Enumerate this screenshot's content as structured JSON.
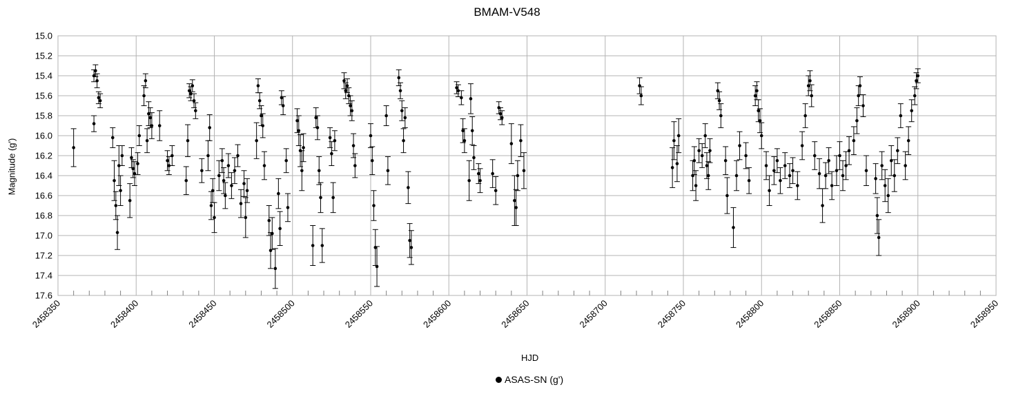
{
  "chart_data": {
    "type": "scatter",
    "title": "BMAM-V548",
    "xlabel": "HJD",
    "ylabel": "Magnitude (g')",
    "xlim": [
      2458350,
      2458950
    ],
    "ylim": [
      15.0,
      17.6
    ],
    "y_inverted": true,
    "grid": true,
    "error_bars": true,
    "legend": "bottom-center",
    "x_ticks": [
      "2458350",
      "2458400",
      "2458450",
      "2458500",
      "2458550",
      "2458600",
      "2458650",
      "2458700",
      "2458750",
      "2458800",
      "2458850",
      "2458900",
      "2458950"
    ],
    "y_ticks": [
      "15.0",
      "15.2",
      "15.4",
      "15.6",
      "15.8",
      "16.0",
      "16.2",
      "16.4",
      "16.6",
      "16.8",
      "17.0",
      "17.2",
      "17.4",
      "17.6"
    ],
    "series": [
      {
        "name": "ASAS-SN (g')",
        "color": "#000000",
        "points": [
          [
            2458360,
            16.12,
            0.19
          ],
          [
            2458373,
            15.4,
            0.06
          ],
          [
            2458373,
            15.88,
            0.08
          ],
          [
            2458374,
            15.35,
            0.06
          ],
          [
            2458375,
            15.45,
            0.07
          ],
          [
            2458376,
            15.62,
            0.06
          ],
          [
            2458377,
            15.65,
            0.07
          ],
          [
            2458385,
            16.02,
            0.1
          ],
          [
            2458386,
            16.45,
            0.2
          ],
          [
            2458387,
            16.7,
            0.14
          ],
          [
            2458388,
            16.97,
            0.17
          ],
          [
            2458389,
            16.3,
            0.2
          ],
          [
            2458390,
            16.55,
            0.15
          ],
          [
            2458391,
            16.2,
            0.1
          ],
          [
            2458396,
            16.65,
            0.17
          ],
          [
            2458397,
            16.22,
            0.1
          ],
          [
            2458398,
            16.33,
            0.09
          ],
          [
            2458399,
            16.38,
            0.12
          ],
          [
            2458401,
            16.28,
            0.11
          ],
          [
            2458402,
            16.0,
            0.1
          ],
          [
            2458405,
            15.6,
            0.1
          ],
          [
            2458406,
            15.45,
            0.07
          ],
          [
            2458407,
            16.05,
            0.12
          ],
          [
            2458408,
            15.78,
            0.12
          ],
          [
            2458409,
            15.82,
            0.1
          ],
          [
            2458410,
            15.9,
            0.13
          ],
          [
            2458415,
            15.9,
            0.15
          ],
          [
            2458420,
            16.25,
            0.1
          ],
          [
            2458421,
            16.3,
            0.09
          ],
          [
            2458423,
            16.2,
            0.1
          ],
          [
            2458432,
            16.45,
            0.14
          ],
          [
            2458433,
            16.05,
            0.16
          ],
          [
            2458434,
            15.55,
            0.07
          ],
          [
            2458435,
            15.58,
            0.07
          ],
          [
            2458436,
            15.5,
            0.06
          ],
          [
            2458437,
            15.65,
            0.07
          ],
          [
            2458438,
            15.75,
            0.08
          ],
          [
            2458442,
            16.35,
            0.12
          ],
          [
            2458446,
            16.2,
            0.15
          ],
          [
            2458447,
            15.92,
            0.13
          ],
          [
            2458448,
            16.7,
            0.14
          ],
          [
            2458449,
            16.55,
            0.12
          ],
          [
            2458450,
            16.82,
            0.15
          ],
          [
            2458453,
            16.4,
            0.15
          ],
          [
            2458455,
            16.25,
            0.12
          ],
          [
            2458456,
            16.45,
            0.13
          ],
          [
            2458457,
            16.6,
            0.13
          ],
          [
            2458459,
            16.3,
            0.12
          ],
          [
            2458461,
            16.5,
            0.13
          ],
          [
            2458463,
            16.35,
            0.13
          ],
          [
            2458465,
            16.2,
            0.11
          ],
          [
            2458467,
            16.68,
            0.14
          ],
          [
            2458469,
            16.48,
            0.13
          ],
          [
            2458470,
            16.82,
            0.2
          ],
          [
            2458471,
            16.55,
            0.12
          ],
          [
            2458477,
            16.05,
            0.18
          ],
          [
            2458478,
            15.5,
            0.07
          ],
          [
            2458479,
            15.65,
            0.08
          ],
          [
            2458480,
            15.8,
            0.1
          ],
          [
            2458481,
            15.9,
            0.12
          ],
          [
            2458482,
            16.3,
            0.14
          ],
          [
            2458485,
            16.85,
            0.15
          ],
          [
            2458486,
            17.15,
            0.18
          ],
          [
            2458487,
            16.98,
            0.16
          ],
          [
            2458489,
            17.33,
            0.2
          ],
          [
            2458491,
            16.58,
            0.15
          ],
          [
            2458492,
            16.93,
            0.17
          ],
          [
            2458493,
            15.62,
            0.07
          ],
          [
            2458494,
            15.7,
            0.09
          ],
          [
            2458496,
            16.25,
            0.12
          ],
          [
            2458497,
            16.72,
            0.14
          ],
          [
            2458503,
            15.85,
            0.12
          ],
          [
            2458504,
            15.95,
            0.15
          ],
          [
            2458505,
            16.15,
            0.16
          ],
          [
            2458506,
            16.35,
            0.2
          ],
          [
            2458507,
            16.12,
            0.14
          ],
          [
            2458513,
            17.1,
            0.2
          ],
          [
            2458515,
            15.82,
            0.1
          ],
          [
            2458516,
            15.92,
            0.12
          ],
          [
            2458517,
            16.35,
            0.14
          ],
          [
            2458518,
            16.62,
            0.15
          ],
          [
            2458519,
            17.1,
            0.17
          ],
          [
            2458524,
            16.02,
            0.1
          ],
          [
            2458525,
            16.18,
            0.12
          ],
          [
            2458526,
            16.62,
            0.15
          ],
          [
            2458527,
            16.05,
            0.1
          ],
          [
            2458533,
            15.45,
            0.08
          ],
          [
            2458534,
            15.55,
            0.08
          ],
          [
            2458535,
            15.5,
            0.07
          ],
          [
            2458536,
            15.6,
            0.08
          ],
          [
            2458537,
            15.7,
            0.1
          ],
          [
            2458538,
            15.75,
            0.1
          ],
          [
            2458539,
            16.1,
            0.12
          ],
          [
            2458540,
            16.3,
            0.12
          ],
          [
            2458550,
            16.0,
            0.12
          ],
          [
            2458551,
            16.25,
            0.14
          ],
          [
            2458552,
            16.7,
            0.15
          ],
          [
            2458553,
            17.12,
            0.18
          ],
          [
            2458554,
            17.31,
            0.2
          ],
          [
            2458560,
            15.8,
            0.1
          ],
          [
            2458561,
            16.35,
            0.14
          ],
          [
            2458568,
            15.42,
            0.08
          ],
          [
            2458569,
            15.55,
            0.08
          ],
          [
            2458570,
            15.75,
            0.1
          ],
          [
            2458571,
            16.05,
            0.12
          ],
          [
            2458572,
            15.82,
            0.1
          ],
          [
            2458574,
            16.52,
            0.16
          ],
          [
            2458575,
            17.05,
            0.17
          ],
          [
            2458576,
            17.12,
            0.17
          ],
          [
            2458605,
            15.52,
            0.06
          ],
          [
            2458606,
            15.55,
            0.06
          ],
          [
            2458608,
            15.62,
            0.07
          ],
          [
            2458609,
            15.95,
            0.12
          ],
          [
            2458610,
            16.05,
            0.12
          ],
          [
            2458613,
            16.45,
            0.2
          ],
          [
            2458614,
            15.63,
            0.15
          ],
          [
            2458615,
            15.95,
            0.14
          ],
          [
            2458616,
            16.22,
            0.12
          ],
          [
            2458619,
            16.38,
            0.1
          ],
          [
            2458620,
            16.45,
            0.12
          ],
          [
            2458628,
            16.38,
            0.14
          ],
          [
            2458630,
            16.55,
            0.14
          ],
          [
            2458632,
            15.72,
            0.06
          ],
          [
            2458633,
            15.78,
            0.06
          ],
          [
            2458634,
            15.82,
            0.07
          ],
          [
            2458640,
            16.08,
            0.2
          ],
          [
            2458642,
            16.65,
            0.25
          ],
          [
            2458643,
            16.72,
            0.18
          ],
          [
            2458644,
            16.4,
            0.15
          ],
          [
            2458646,
            16.05,
            0.16
          ],
          [
            2458648,
            16.35,
            0.18
          ],
          [
            2458722,
            15.5,
            0.08
          ],
          [
            2458723,
            15.6,
            0.09
          ],
          [
            2458743,
            16.32,
            0.2
          ],
          [
            2458744,
            16.05,
            0.19
          ],
          [
            2458746,
            16.28,
            0.18
          ],
          [
            2458747,
            16.0,
            0.17
          ],
          [
            2458756,
            16.4,
            0.15
          ],
          [
            2458757,
            16.25,
            0.14
          ],
          [
            2458758,
            16.5,
            0.15
          ],
          [
            2458760,
            16.15,
            0.12
          ],
          [
            2458762,
            16.2,
            0.12
          ],
          [
            2458764,
            16.0,
            0.12
          ],
          [
            2458765,
            16.3,
            0.13
          ],
          [
            2458766,
            16.4,
            0.14
          ],
          [
            2458767,
            16.15,
            0.12
          ],
          [
            2458772,
            15.55,
            0.08
          ],
          [
            2458773,
            15.65,
            0.09
          ],
          [
            2458774,
            15.8,
            0.12
          ],
          [
            2458777,
            16.25,
            0.14
          ],
          [
            2458778,
            16.6,
            0.18
          ],
          [
            2458782,
            16.92,
            0.2
          ],
          [
            2458784,
            16.4,
            0.15
          ],
          [
            2458786,
            16.1,
            0.14
          ],
          [
            2458790,
            16.2,
            0.13
          ],
          [
            2458792,
            16.45,
            0.13
          ],
          [
            2458796,
            15.6,
            0.1
          ],
          [
            2458797,
            15.55,
            0.09
          ],
          [
            2458798,
            15.75,
            0.11
          ],
          [
            2458799,
            15.85,
            0.12
          ],
          [
            2458800,
            16.0,
            0.13
          ],
          [
            2458803,
            16.3,
            0.14
          ],
          [
            2458805,
            16.55,
            0.15
          ],
          [
            2458808,
            16.35,
            0.14
          ],
          [
            2458810,
            16.25,
            0.12
          ],
          [
            2458812,
            16.45,
            0.13
          ],
          [
            2458815,
            16.3,
            0.13
          ],
          [
            2458818,
            16.4,
            0.12
          ],
          [
            2458820,
            16.35,
            0.13
          ],
          [
            2458823,
            16.5,
            0.14
          ],
          [
            2458826,
            16.1,
            0.14
          ],
          [
            2458828,
            15.8,
            0.12
          ],
          [
            2458830,
            15.5,
            0.1
          ],
          [
            2458831,
            15.45,
            0.1
          ],
          [
            2458832,
            15.6,
            0.11
          ],
          [
            2458834,
            16.2,
            0.14
          ],
          [
            2458837,
            16.38,
            0.15
          ],
          [
            2458839,
            16.7,
            0.17
          ],
          [
            2458841,
            16.4,
            0.13
          ],
          [
            2458843,
            16.25,
            0.13
          ],
          [
            2458845,
            16.5,
            0.14
          ],
          [
            2458848,
            16.35,
            0.15
          ],
          [
            2458850,
            16.2,
            0.14
          ],
          [
            2458852,
            16.4,
            0.15
          ],
          [
            2458854,
            16.3,
            0.14
          ],
          [
            2458856,
            16.15,
            0.14
          ],
          [
            2458859,
            16.05,
            0.14
          ],
          [
            2458861,
            15.85,
            0.13
          ],
          [
            2458862,
            15.6,
            0.1
          ],
          [
            2458863,
            15.5,
            0.09
          ],
          [
            2458865,
            15.7,
            0.11
          ],
          [
            2458867,
            16.35,
            0.15
          ],
          [
            2458873,
            16.43,
            0.15
          ],
          [
            2458874,
            16.8,
            0.18
          ],
          [
            2458875,
            17.02,
            0.18
          ],
          [
            2458877,
            16.3,
            0.14
          ],
          [
            2458879,
            16.5,
            0.16
          ],
          [
            2458881,
            16.6,
            0.17
          ],
          [
            2458883,
            16.25,
            0.15
          ],
          [
            2458885,
            16.4,
            0.16
          ],
          [
            2458887,
            16.15,
            0.13
          ],
          [
            2458889,
            15.8,
            0.12
          ],
          [
            2458892,
            16.3,
            0.14
          ],
          [
            2458894,
            16.05,
            0.14
          ],
          [
            2458896,
            15.75,
            0.11
          ],
          [
            2458898,
            15.6,
            0.09
          ],
          [
            2458899,
            15.45,
            0.08
          ],
          [
            2458900,
            15.4,
            0.07
          ]
        ]
      }
    ]
  }
}
